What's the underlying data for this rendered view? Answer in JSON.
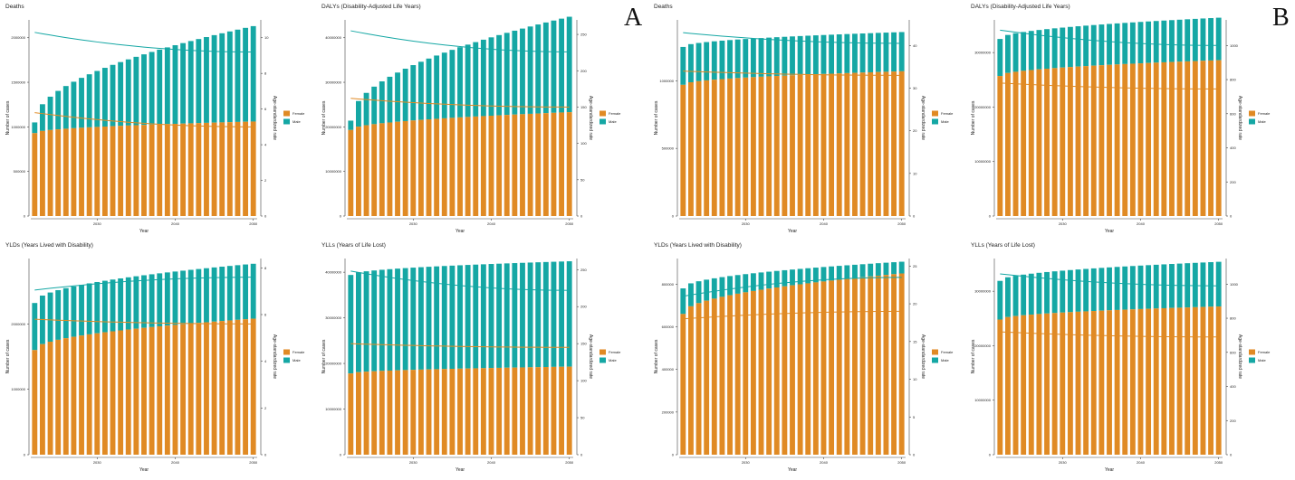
{
  "panels": [
    "A",
    "B"
  ],
  "chart_data": [
    {
      "panel": "A",
      "title": "Deaths",
      "type": "bar",
      "xlabel": "Year",
      "ylabel": "Number of cases",
      "y2label": "Age-standardized rate",
      "x_start": 2022,
      "x_end": 2050,
      "xticks": [
        2030,
        2040,
        2050
      ],
      "ylim": [
        0,
        2200000
      ],
      "yticks": [
        0,
        500000,
        1000000,
        1500000,
        2000000
      ],
      "y2lim": [
        0,
        11
      ],
      "y2ticks": [
        0,
        2,
        4,
        6,
        8,
        10
      ],
      "female": {
        "start": 930000,
        "end": 1060000
      },
      "male_top": {
        "start": 1050000,
        "end": 2130000
      },
      "male_rate": {
        "start": 10.3,
        "end": 9.2
      },
      "female_rate": {
        "start": 5.8,
        "end": 5.0
      }
    },
    {
      "panel": "A",
      "title": "DALYs (Disability-Adjusted Life Years)",
      "type": "bar",
      "xlabel": "Year",
      "ylabel": "Number of cases",
      "y2label": "Age-standardized rate",
      "x_start": 2022,
      "x_end": 2050,
      "xticks": [
        2030,
        2040,
        2050
      ],
      "ylim": [
        0,
        44000000
      ],
      "yticks": [
        0,
        10000000,
        20000000,
        30000000,
        40000000
      ],
      "y2lim": [
        0,
        270
      ],
      "y2ticks": [
        0,
        50,
        100,
        150,
        200,
        250
      ],
      "female": {
        "start": 19300000,
        "end": 23300000
      },
      "male_top": {
        "start": 21400000,
        "end": 44700000
      },
      "male_rate": {
        "start": 255,
        "end": 226
      },
      "female_rate": {
        "start": 162,
        "end": 150
      }
    },
    {
      "panel": "B",
      "title": "Deaths",
      "type": "bar",
      "xlabel": "Year",
      "ylabel": "Number of cases",
      "y2label": "Age-standardized rate",
      "x_start": 2022,
      "x_end": 2050,
      "xticks": [
        2030,
        2040,
        2050
      ],
      "ylim": [
        0,
        1450000
      ],
      "yticks": [
        0,
        500000,
        1000000
      ],
      "y2lim": [
        0,
        46
      ],
      "y2ticks": [
        0,
        10,
        20,
        30,
        40
      ],
      "female": {
        "start": 970000,
        "end": 1070000
      },
      "male_top": {
        "start": 1250000,
        "end": 1360000
      },
      "male_rate": {
        "start": 43,
        "end": 40.5
      },
      "female_rate": {
        "start": 34,
        "end": 33
      }
    },
    {
      "panel": "B",
      "title": "DALYs (Disability-Adjusted Life Years)",
      "type": "bar",
      "xlabel": "Year",
      "ylabel": "Number of cases",
      "y2label": "Age-standardized rate",
      "x_start": 2022,
      "x_end": 2050,
      "xticks": [
        2030,
        2040,
        2050
      ],
      "ylim": [
        0,
        36000000
      ],
      "yticks": [
        0,
        10000000,
        20000000,
        30000000
      ],
      "y2lim": [
        0,
        1150
      ],
      "y2ticks": [
        0,
        200,
        400,
        600,
        800,
        1000
      ],
      "female": {
        "start": 25700000,
        "end": 28600000
      },
      "male_top": {
        "start": 32500000,
        "end": 36400000
      },
      "male_rate": {
        "start": 1090,
        "end": 1000
      },
      "female_rate": {
        "start": 780,
        "end": 745
      }
    },
    {
      "panel": "A",
      "title": "YLDs (Years Lived with Disability)",
      "type": "bar",
      "xlabel": "Year",
      "ylabel": "Number of cases",
      "y2label": "Age-standardized rate",
      "x_start": 2022,
      "x_end": 2050,
      "xticks": [
        2030,
        2040,
        2050
      ],
      "ylim": [
        0,
        3000000
      ],
      "yticks": [
        0,
        1000000,
        2000000
      ],
      "y2lim": [
        0,
        8.4
      ],
      "y2ticks": [
        0,
        2,
        4,
        6,
        8
      ],
      "female": {
        "start": 1600000,
        "end": 2080000
      },
      "male_top": {
        "start": 2320000,
        "end": 2920000
      },
      "male_rate": {
        "start": 7.05,
        "end": 7.6
      },
      "female_rate": {
        "start": 5.8,
        "end": 5.6
      }
    },
    {
      "panel": "A",
      "title": "YLLs (Years of Life Lost)",
      "type": "bar",
      "xlabel": "Year",
      "ylabel": "Number of cases",
      "y2label": "Age-standardized rate",
      "x_start": 2022,
      "x_end": 2050,
      "xticks": [
        2030,
        2040,
        2050
      ],
      "ylim": [
        0,
        43000000
      ],
      "yticks": [
        0,
        10000000,
        20000000,
        30000000,
        40000000
      ],
      "y2lim": [
        0,
        265
      ],
      "y2ticks": [
        0,
        50,
        100,
        150,
        200,
        250
      ],
      "female": {
        "start": 17800000,
        "end": 19300000
      },
      "male_top": {
        "start": 39400000,
        "end": 42400000
      },
      "male_rate": {
        "start": 248,
        "end": 222
      },
      "female_rate": {
        "start": 150,
        "end": 145
      }
    },
    {
      "panel": "B",
      "title": "YLDs (Years Lived with Disability)",
      "type": "bar",
      "xlabel": "Year",
      "ylabel": "Number of cases",
      "y2label": "Age-standardized rate",
      "x_start": 2022,
      "x_end": 2050,
      "xticks": [
        2030,
        2040,
        2050
      ],
      "ylim": [
        0,
        920000
      ],
      "yticks": [
        0,
        200000,
        400000,
        600000,
        800000
      ],
      "y2lim": [
        0,
        26
      ],
      "y2ticks": [
        0,
        5,
        10,
        15,
        20,
        25
      ],
      "female": {
        "start": 660000,
        "end": 850000
      },
      "male_top": {
        "start": 780000,
        "end": 905000
      },
      "male_rate": {
        "start": 21,
        "end": 23.5
      },
      "female_rate": {
        "start": 18,
        "end": 19
      }
    },
    {
      "panel": "B",
      "title": "YLLs (Years of Life Lost)",
      "type": "bar",
      "xlabel": "Year",
      "ylabel": "Number of cases",
      "y2label": "Age-standardized rate",
      "x_start": 2022,
      "x_end": 2050,
      "xticks": [
        2030,
        2040,
        2050
      ],
      "ylim": [
        0,
        36000000
      ],
      "yticks": [
        0,
        10000000,
        20000000,
        30000000
      ],
      "y2lim": [
        0,
        1150
      ],
      "y2ticks": [
        0,
        200,
        400,
        600,
        800,
        1000
      ],
      "female": {
        "start": 24800000,
        "end": 27200000
      },
      "male_top": {
        "start": 31900000,
        "end": 35400000
      },
      "male_rate": {
        "start": 1060,
        "end": 990
      },
      "female_rate": {
        "start": 720,
        "end": 690
      }
    }
  ],
  "legend": {
    "labels": [
      "Female",
      "Male"
    ]
  },
  "colors": {
    "female": "#e08a24",
    "male": "#15a7a4",
    "axis": "#444444",
    "text": "#222222"
  }
}
